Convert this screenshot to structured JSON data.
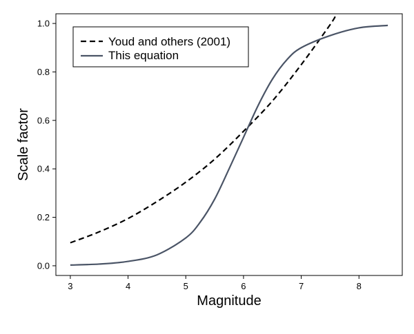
{
  "chart_data": {
    "type": "line",
    "title": "",
    "xlabel": "Magnitude",
    "ylabel": "Scale factor",
    "xlim": [
      2.75,
      8.75
    ],
    "ylim": [
      -0.04,
      1.04
    ],
    "xticks": [
      3,
      4,
      5,
      6,
      7,
      8
    ],
    "yticks": [
      0.0,
      0.2,
      0.4,
      0.6,
      0.8,
      1.0
    ],
    "xtick_labels": [
      "3",
      "4",
      "5",
      "6",
      "7",
      "8"
    ],
    "ytick_labels": [
      "0.0",
      "0.2",
      "0.4",
      "0.6",
      "0.8",
      "1.0"
    ],
    "grid": false,
    "legend_position": "top-left",
    "series": [
      {
        "name": "Youd and others (2001)",
        "style": "dashed",
        "color": "#000000",
        "x": [
          3.0,
          3.5,
          4.0,
          4.5,
          5.0,
          5.5,
          6.0,
          6.5,
          7.0,
          7.5,
          7.6
        ],
        "y": [
          0.095,
          0.14,
          0.195,
          0.265,
          0.345,
          0.44,
          0.555,
          0.68,
          0.83,
          0.995,
          1.035
        ]
      },
      {
        "name": "This equation",
        "style": "solid",
        "color": "#4a5466",
        "x": [
          3.0,
          3.5,
          4.0,
          4.5,
          5.0,
          5.25,
          5.5,
          5.75,
          6.0,
          6.25,
          6.5,
          6.75,
          7.0,
          7.5,
          8.0,
          8.5
        ],
        "y": [
          0.003,
          0.007,
          0.018,
          0.045,
          0.115,
          0.18,
          0.275,
          0.4,
          0.53,
          0.66,
          0.77,
          0.85,
          0.9,
          0.95,
          0.982,
          0.992
        ]
      }
    ]
  }
}
